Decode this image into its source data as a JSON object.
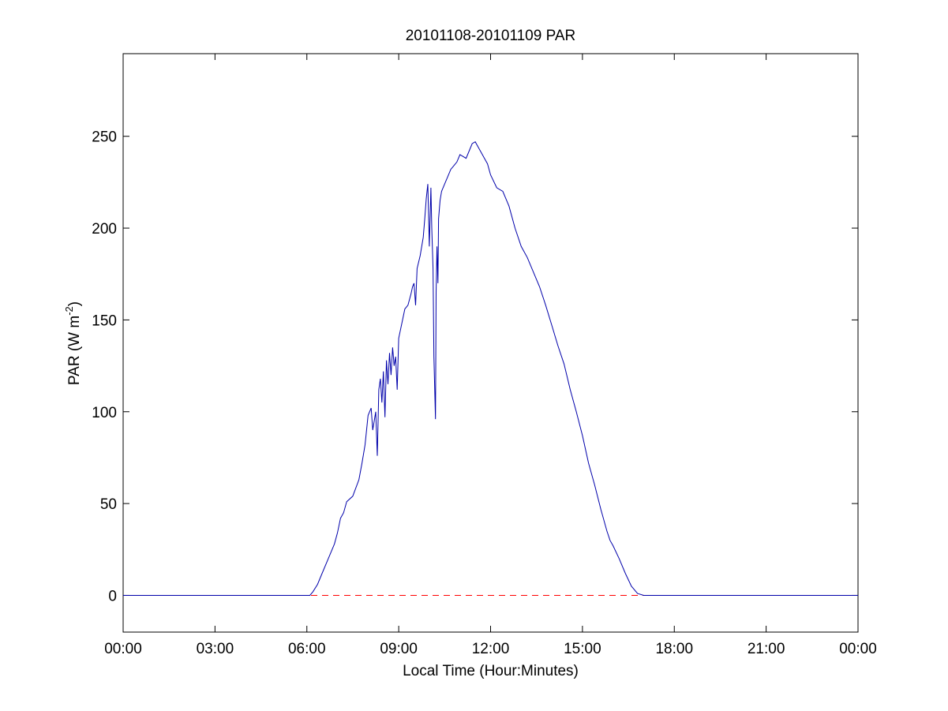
{
  "chart_data": {
    "type": "line",
    "title": "20101108-20101109 PAR",
    "xlabel": "Local Time (Hour:Minutes)",
    "ylabel_main": "PAR (W m",
    "ylabel_sup": "-2",
    "ylabel_end": ")",
    "xlim": [
      0,
      24
    ],
    "ylim": [
      -20,
      295
    ],
    "x_tick_values": [
      0,
      3,
      6,
      9,
      12,
      15,
      18,
      21,
      24
    ],
    "x_tick_labels": [
      "00:00",
      "03:00",
      "06:00",
      "09:00",
      "12:00",
      "15:00",
      "18:00",
      "21:00",
      "00:00"
    ],
    "y_tick_values": [
      0,
      50,
      100,
      150,
      200,
      250
    ],
    "y_tick_labels": [
      "0",
      "50",
      "100",
      "150",
      "200",
      "250"
    ],
    "grid": false,
    "series": [
      {
        "color": "#0000aa",
        "x": [
          0,
          6.1,
          6.2,
          6.35,
          6.5,
          6.7,
          6.9,
          7.0,
          7.1,
          7.2,
          7.3,
          7.5,
          7.7,
          7.8,
          7.9,
          8.0,
          8.1,
          8.15,
          8.25,
          8.3,
          8.35,
          8.4,
          8.45,
          8.5,
          8.55,
          8.6,
          8.65,
          8.7,
          8.75,
          8.8,
          8.85,
          8.9,
          8.95,
          9.0,
          9.1,
          9.2,
          9.3,
          9.4,
          9.45,
          9.5,
          9.55,
          9.6,
          9.7,
          9.8,
          9.85,
          9.9,
          9.95,
          10.0,
          10.05,
          10.08,
          10.12,
          10.15,
          10.2,
          10.22,
          10.25,
          10.28,
          10.3,
          10.35,
          10.4,
          10.5,
          10.6,
          10.7,
          10.8,
          10.9,
          11.0,
          11.2,
          11.4,
          11.5,
          11.6,
          11.7,
          11.8,
          11.9,
          12.0,
          12.2,
          12.4,
          12.6,
          12.8,
          13.0,
          13.2,
          13.4,
          13.6,
          13.8,
          14.0,
          14.2,
          14.4,
          14.6,
          14.8,
          15.0,
          15.2,
          15.4,
          15.6,
          15.8,
          15.9,
          16.0,
          16.2,
          16.4,
          16.6,
          16.8,
          17.0,
          17.2,
          17.4,
          24
        ],
        "values": [
          0,
          0,
          2,
          6,
          12,
          20,
          28,
          34,
          42,
          45,
          51,
          54,
          63,
          72,
          82,
          98,
          102,
          90,
          100,
          76,
          112,
          118,
          105,
          122,
          97,
          128,
          115,
          132,
          120,
          135,
          125,
          130,
          112,
          140,
          148,
          156,
          158,
          164,
          168,
          170,
          158,
          178,
          185,
          195,
          205,
          216,
          224,
          190,
          222,
          200,
          178,
          130,
          96,
          165,
          190,
          170,
          205,
          215,
          220,
          224,
          228,
          232,
          234,
          236,
          240,
          238,
          246,
          247,
          244,
          241,
          238,
          235,
          229,
          222,
          220,
          212,
          200,
          190,
          184,
          176,
          168,
          158,
          147,
          136,
          126,
          112,
          100,
          87,
          72,
          60,
          47,
          35,
          30,
          27,
          20,
          12,
          5,
          1,
          0,
          0,
          0,
          0
        ]
      }
    ],
    "reference_line": {
      "y": 0,
      "color": "#ff0000",
      "style": "dashed"
    }
  }
}
